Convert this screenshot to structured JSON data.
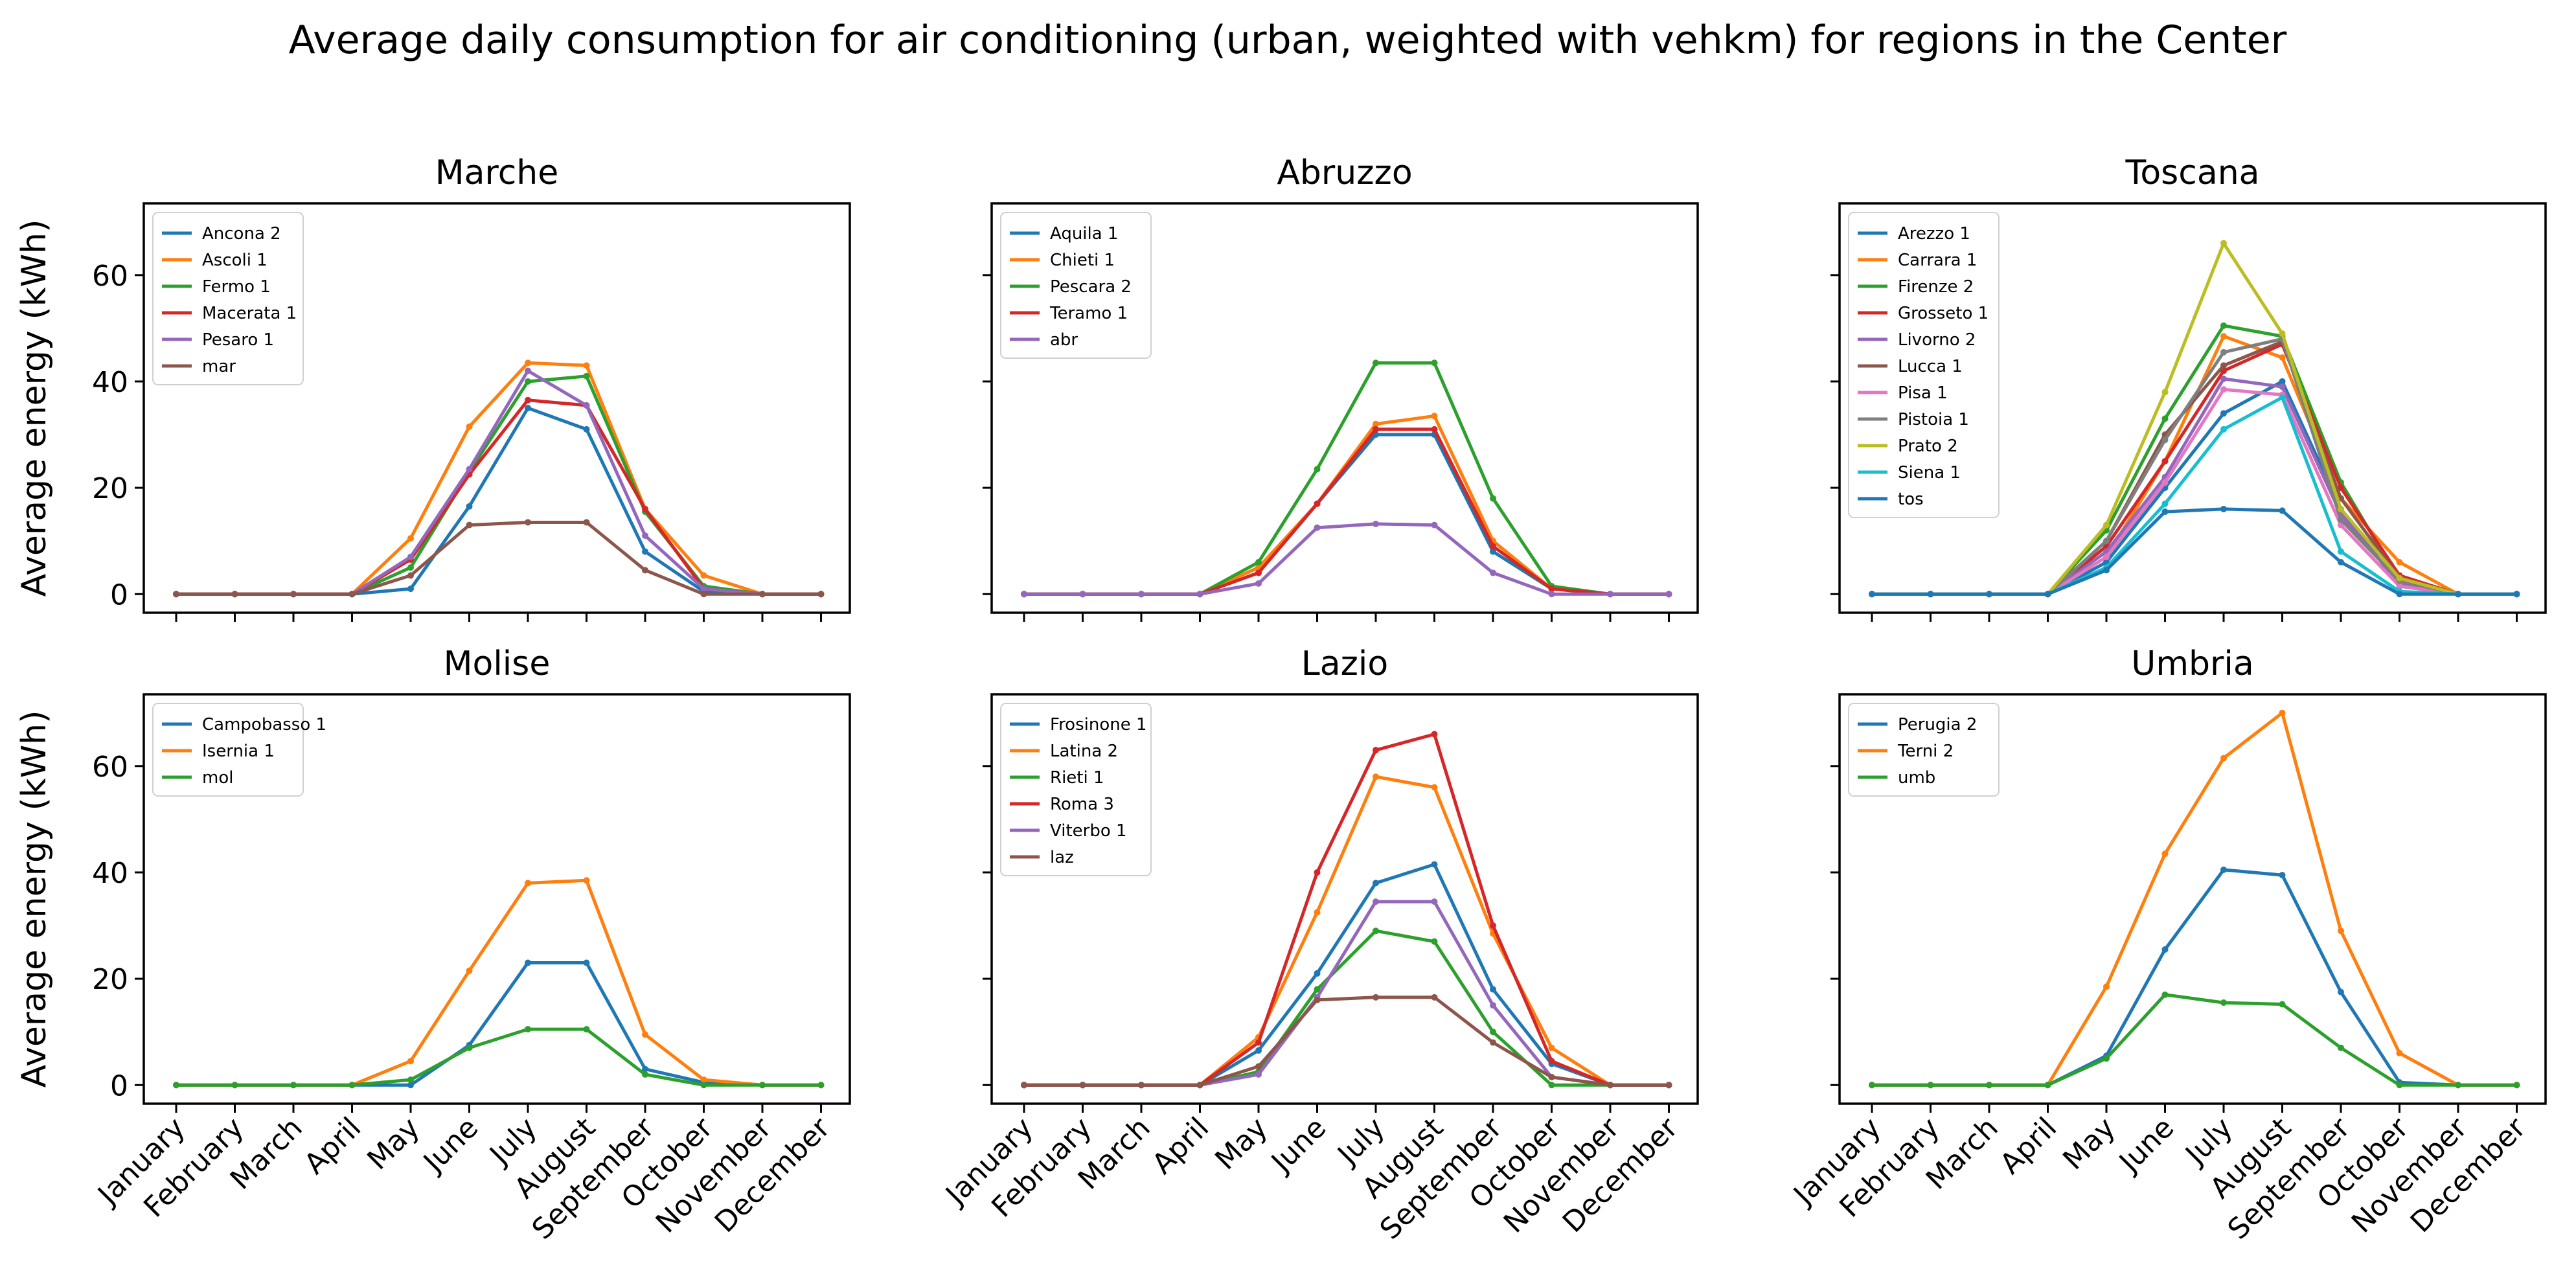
{
  "title": "Average daily consumption for air conditioning (urban, weighted with vehkm) for regions in the Center",
  "chart_data": {
    "type": "line",
    "months": [
      "January",
      "February",
      "March",
      "April",
      "May",
      "June",
      "July",
      "August",
      "September",
      "October",
      "November",
      "December"
    ],
    "ylabel": "Average energy (kWh)",
    "ylim": [
      -3.5,
      73.5
    ],
    "yticks": [
      0,
      20,
      40,
      60
    ],
    "subplots": [
      {
        "title": "Marche",
        "series": [
          {
            "name": "Ancona 2",
            "color": "#1f77b4",
            "values": [
              0,
              0,
              0,
              0,
              1,
              16.5,
              35,
              31,
              8,
              0.5,
              0,
              0
            ]
          },
          {
            "name": "Ascoli 1",
            "color": "#ff7f0e",
            "values": [
              0,
              0,
              0,
              0,
              10.5,
              31.5,
              43.5,
              43,
              16,
              3.5,
              0,
              0
            ]
          },
          {
            "name": "Fermo 1",
            "color": "#2ca02c",
            "values": [
              0,
              0,
              0,
              0,
              5,
              23,
              40,
              41,
              15.5,
              1.5,
              0,
              0
            ]
          },
          {
            "name": "Macerata 1",
            "color": "#d62728",
            "values": [
              0,
              0,
              0,
              0,
              6.5,
              22.5,
              36.5,
              35.5,
              16,
              1,
              0,
              0
            ]
          },
          {
            "name": "Pesaro 1",
            "color": "#9467bd",
            "values": [
              0,
              0,
              0,
              0,
              7,
              23.5,
              42,
              35.5,
              11,
              1,
              0,
              0
            ]
          },
          {
            "name": "mar",
            "color": "#8c564b",
            "values": [
              0,
              0,
              0,
              0,
              3.5,
              13,
              13.5,
              13.5,
              4.5,
              0,
              0,
              0
            ]
          }
        ]
      },
      {
        "title": "Abruzzo",
        "series": [
          {
            "name": "Aquila 1",
            "color": "#1f77b4",
            "values": [
              0,
              0,
              0,
              0,
              4,
              17,
              30,
              30,
              8,
              1,
              0,
              0
            ]
          },
          {
            "name": "Chieti 1",
            "color": "#ff7f0e",
            "values": [
              0,
              0,
              0,
              0,
              5,
              17,
              32,
              33.5,
              10,
              1,
              0,
              0
            ]
          },
          {
            "name": "Pescara 2",
            "color": "#2ca02c",
            "values": [
              0,
              0,
              0,
              0,
              6,
              23.5,
              43.5,
              43.5,
              18,
              1.5,
              0,
              0
            ]
          },
          {
            "name": "Teramo 1",
            "color": "#d62728",
            "values": [
              0,
              0,
              0,
              0,
              4,
              17,
              31,
              31,
              9,
              1,
              0,
              0
            ]
          },
          {
            "name": "abr",
            "color": "#9467bd",
            "values": [
              0,
              0,
              0,
              0,
              2,
              12.5,
              13.2,
              13,
              4,
              0,
              0,
              0
            ]
          }
        ]
      },
      {
        "title": "Toscana",
        "series": [
          {
            "name": "Arezzo 1",
            "color": "#1f77b4",
            "values": [
              0,
              0,
              0,
              0,
              6,
              20,
              34,
              40,
              16,
              1.5,
              0,
              0
            ]
          },
          {
            "name": "Carrara 1",
            "color": "#ff7f0e",
            "values": [
              0,
              0,
              0,
              0,
              7,
              25,
              48.5,
              44.5,
              18,
              6,
              0,
              0
            ]
          },
          {
            "name": "Firenze 2",
            "color": "#2ca02c",
            "values": [
              0,
              0,
              0,
              0,
              12,
              33,
              50.5,
              48.5,
              21,
              2.5,
              0,
              0
            ]
          },
          {
            "name": "Grosseto 1",
            "color": "#d62728",
            "values": [
              0,
              0,
              0,
              0,
              9,
              25,
              42,
              47,
              20,
              3.5,
              0,
              0
            ]
          },
          {
            "name": "Livorno 2",
            "color": "#9467bd",
            "values": [
              0,
              0,
              0,
              0,
              8,
              22,
              40.5,
              39,
              15,
              2,
              0,
              0
            ]
          },
          {
            "name": "Lucca 1",
            "color": "#8c564b",
            "values": [
              0,
              0,
              0,
              0,
              10,
              30,
              43,
              47.5,
              18,
              3,
              0,
              0
            ]
          },
          {
            "name": "Pisa 1",
            "color": "#e377c2",
            "values": [
              0,
              0,
              0,
              0,
              7,
              21,
              38.5,
              37.5,
              13,
              1.5,
              0,
              0
            ]
          },
          {
            "name": "Pistoia 1",
            "color": "#7f7f7f",
            "values": [
              0,
              0,
              0,
              0,
              10,
              29,
              45.5,
              48,
              14,
              2.5,
              0,
              0
            ]
          },
          {
            "name": "Prato 2",
            "color": "#bcbd22",
            "values": [
              0,
              0,
              0,
              0,
              13,
              38,
              66,
              49,
              16,
              3,
              0,
              0
            ]
          },
          {
            "name": "Siena 1",
            "color": "#17becf",
            "values": [
              0,
              0,
              0,
              0,
              5,
              17,
              31,
              37,
              8,
              0.5,
              0,
              0
            ]
          },
          {
            "name": "tos",
            "color": "#1f77b4",
            "values": [
              0,
              0,
              0,
              0,
              4.5,
              15.5,
              16,
              15.7,
              6,
              0,
              0,
              0
            ]
          }
        ]
      },
      {
        "title": "Molise",
        "series": [
          {
            "name": "Campobasso 1",
            "color": "#1f77b4",
            "values": [
              0,
              0,
              0,
              0,
              0,
              7.5,
              23,
              23,
              3,
              0.5,
              0,
              0
            ]
          },
          {
            "name": "Isernia 1",
            "color": "#ff7f0e",
            "values": [
              0,
              0,
              0,
              0,
              4.5,
              21.5,
              38,
              38.5,
              9.5,
              1,
              0,
              0
            ]
          },
          {
            "name": "mol",
            "color": "#2ca02c",
            "values": [
              0,
              0,
              0,
              0,
              1,
              7,
              10.5,
              10.5,
              2,
              0,
              0,
              0
            ]
          }
        ]
      },
      {
        "title": "Lazio",
        "series": [
          {
            "name": "Frosinone 1",
            "color": "#1f77b4",
            "values": [
              0,
              0,
              0,
              0,
              6.5,
              21,
              38,
              41.5,
              18,
              4,
              0,
              0
            ]
          },
          {
            "name": "Latina 2",
            "color": "#ff7f0e",
            "values": [
              0,
              0,
              0,
              0,
              9,
              32.5,
              58,
              56,
              28.5,
              7,
              0,
              0
            ]
          },
          {
            "name": "Rieti 1",
            "color": "#2ca02c",
            "values": [
              0,
              0,
              0,
              0,
              2.5,
              18,
              29,
              27,
              10,
              0,
              0,
              0
            ]
          },
          {
            "name": "Roma 3",
            "color": "#d62728",
            "values": [
              0,
              0,
              0,
              0,
              8,
              40,
              63,
              66,
              30,
              4.5,
              0,
              0
            ]
          },
          {
            "name": "Viterbo 1",
            "color": "#9467bd",
            "values": [
              0,
              0,
              0,
              0,
              2,
              16.5,
              34.5,
              34.5,
              15,
              1.5,
              0,
              0
            ]
          },
          {
            "name": "laz",
            "color": "#8c564b",
            "values": [
              0,
              0,
              0,
              0,
              3.5,
              16,
              16.5,
              16.5,
              8,
              1.5,
              0,
              0
            ]
          }
        ]
      },
      {
        "title": "Umbria",
        "series": [
          {
            "name": "Perugia 2",
            "color": "#1f77b4",
            "values": [
              0,
              0,
              0,
              0,
              5.5,
              25.5,
              40.5,
              39.5,
              17.5,
              0.5,
              0,
              0
            ]
          },
          {
            "name": "Terni 2",
            "color": "#ff7f0e",
            "values": [
              0,
              0,
              0,
              0,
              18.5,
              43.5,
              61.5,
              70,
              29,
              6,
              0,
              0
            ]
          },
          {
            "name": "umb",
            "color": "#2ca02c",
            "values": [
              0,
              0,
              0,
              0,
              5,
              17,
              15.5,
              15.2,
              7,
              0,
              0,
              0
            ]
          }
        ]
      }
    ]
  }
}
